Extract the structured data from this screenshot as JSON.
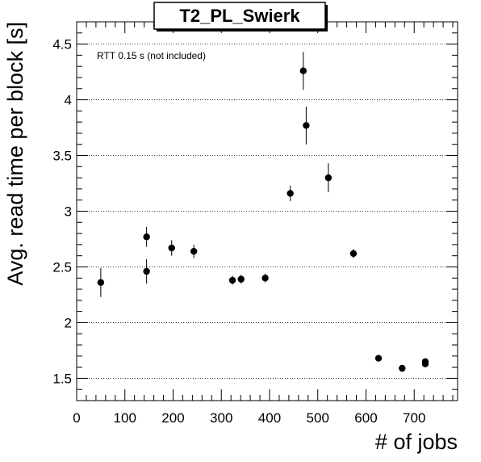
{
  "chart_data": {
    "type": "scatter",
    "title": "T2_PL_Swierk",
    "xlabel": "# of jobs",
    "ylabel": "Avg. read time per block [s]",
    "annotation": "RTT 0.15 s (not included)",
    "xlim": [
      0,
      790
    ],
    "ylim": [
      1.3,
      4.7
    ],
    "x_ticks": [
      0,
      100,
      200,
      300,
      400,
      500,
      600,
      700
    ],
    "x_tick_labels": [
      "0",
      "100",
      "200",
      "300",
      "400",
      "500",
      "600",
      "700"
    ],
    "y_ticks": [
      1.5,
      2,
      2.5,
      3,
      3.5,
      4,
      4.5
    ],
    "y_tick_labels": [
      "1.5",
      "2",
      "2.5",
      "3",
      "3.5",
      "4",
      "4.5"
    ],
    "grid": "y-dotted",
    "marker_color": "#000000",
    "points": [
      {
        "x": 50,
        "y": 2.36,
        "err": 0.13
      },
      {
        "x": 145,
        "y": 2.77,
        "err": 0.09
      },
      {
        "x": 145,
        "y": 2.46,
        "err": 0.11
      },
      {
        "x": 197,
        "y": 2.67,
        "err": 0.07
      },
      {
        "x": 243,
        "y": 2.64,
        "err": 0.06
      },
      {
        "x": 323,
        "y": 2.38,
        "err": 0.04
      },
      {
        "x": 341,
        "y": 2.39,
        "err": 0.04
      },
      {
        "x": 391,
        "y": 2.4,
        "err": 0.04
      },
      {
        "x": 443,
        "y": 3.16,
        "err": 0.07
      },
      {
        "x": 470,
        "y": 4.26,
        "err": 0.17
      },
      {
        "x": 476,
        "y": 3.77,
        "err": 0.17
      },
      {
        "x": 522,
        "y": 3.3,
        "err": 0.13
      },
      {
        "x": 574,
        "y": 2.62,
        "err": 0.04
      },
      {
        "x": 626,
        "y": 1.68,
        "err": 0.02
      },
      {
        "x": 675,
        "y": 1.59,
        "err": 0.02
      },
      {
        "x": 723,
        "y": 1.63,
        "err": 0.02
      },
      {
        "x": 723,
        "y": 1.65,
        "err": 0.02
      }
    ]
  }
}
